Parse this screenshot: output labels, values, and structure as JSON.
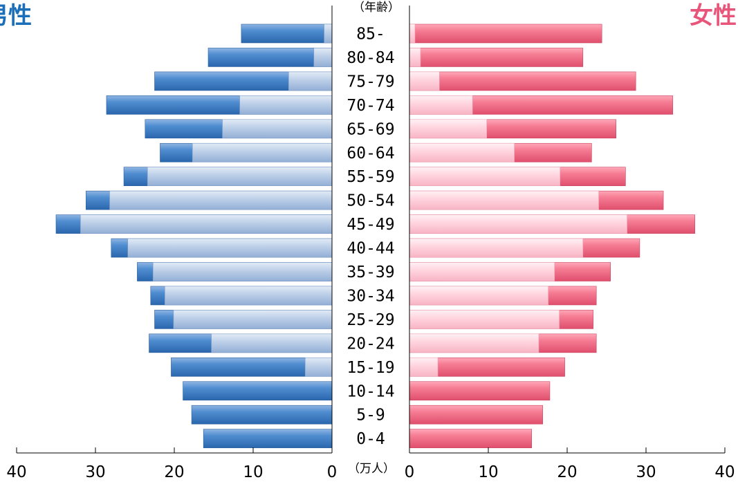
{
  "labels": {
    "male": "男性",
    "female": "女性",
    "age_unit": "（年齢）",
    "x_unit": "（万人）"
  },
  "colors": {
    "male_dark": "#3f7dc3",
    "male_light": "#b6c9e4",
    "female_dark": "#f26e86",
    "female_light": "#ffd3de",
    "male_label": "#1a6fb8",
    "female_label": "#e8557a"
  },
  "chart_data": {
    "type": "bar",
    "orientation": "horizontal",
    "subtype": "population-pyramid",
    "categories": [
      "85-",
      "80-84",
      "75-79",
      "70-74",
      "65-69",
      "60-64",
      "55-59",
      "50-54",
      "45-49",
      "40-44",
      "35-39",
      "30-34",
      "25-29",
      "20-24",
      "15-19",
      "10-14",
      "5-9",
      "0-4"
    ],
    "series": [
      {
        "side": "male",
        "part": "total",
        "values": [
          11.5,
          15.7,
          22.5,
          28.6,
          23.7,
          21.8,
          26.4,
          31.2,
          35.0,
          28.0,
          24.7,
          23.0,
          22.5,
          23.2,
          20.4,
          18.9,
          17.8,
          16.3
        ]
      },
      {
        "side": "male",
        "part": "light-segment",
        "values": [
          1.0,
          2.3,
          5.5,
          11.7,
          13.9,
          17.7,
          23.4,
          28.2,
          31.9,
          25.9,
          22.7,
          21.2,
          20.1,
          15.3,
          3.4,
          0,
          0,
          0
        ]
      },
      {
        "side": "female",
        "part": "total",
        "values": [
          24.4,
          22.0,
          28.7,
          33.4,
          26.2,
          23.1,
          27.4,
          32.2,
          36.2,
          29.2,
          25.5,
          23.7,
          23.3,
          23.7,
          19.7,
          17.8,
          16.9,
          15.5
        ]
      },
      {
        "side": "female",
        "part": "light-segment",
        "values": [
          0.7,
          1.4,
          3.8,
          8.0,
          9.8,
          13.3,
          19.1,
          24.0,
          27.6,
          22.0,
          18.4,
          17.6,
          19.0,
          16.4,
          3.6,
          0,
          0,
          0
        ]
      }
    ],
    "x_ticks": [
      "40",
      "30",
      "20",
      "10",
      "0"
    ],
    "xlim": [
      0,
      40
    ],
    "grid": false,
    "legend": "none"
  }
}
